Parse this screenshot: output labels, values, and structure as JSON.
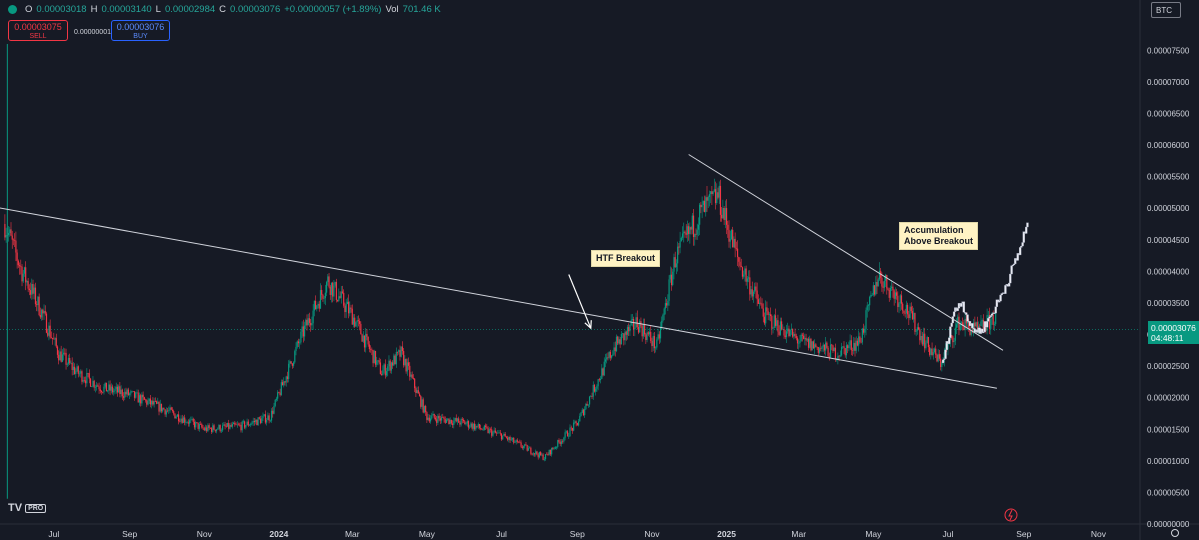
{
  "header": {
    "ohlc": {
      "o_label": "O",
      "o": "0.00003018",
      "h_label": "H",
      "h": "0.00003140",
      "l_label": "L",
      "l": "0.00002984",
      "c_label": "C",
      "c": "0.00003076",
      "change": "+0.00000057 (+1.89%)",
      "vol_label": "Vol",
      "vol": "701.46 K"
    },
    "sell": {
      "price": "0.00003075",
      "label": "SELL"
    },
    "spread": "0.00000001",
    "buy": {
      "price": "0.00003076",
      "label": "BUY"
    },
    "currency": "BTC"
  },
  "last_price": {
    "value": "0.00003076",
    "countdown": "04:48:11"
  },
  "annotations": {
    "htf": "HTF Breakout",
    "accum_line1": "Accumulation",
    "accum_line2": "Above Breakout"
  },
  "logo": {
    "name": "TV",
    "badge": "PRO"
  },
  "colors": {
    "up": "#089981",
    "down": "#f23645",
    "background": "#161a25",
    "text": "#d1d4dc"
  },
  "chart_data": {
    "type": "candlestick",
    "y_ticks": [
      "0.00007500",
      "0.00007000",
      "0.00006500",
      "0.00006000",
      "0.00005500",
      "0.00005000",
      "0.00004500",
      "0.00004000",
      "0.00003500",
      "0.00003000",
      "0.00002500",
      "0.00002000",
      "0.00001500",
      "0.00001000",
      "0.00000500",
      "0.00000000"
    ],
    "y_range": [
      0,
      7.9e-05
    ],
    "x_ticks": [
      "Jul",
      "Sep",
      "Nov",
      "2024",
      "Mar",
      "May",
      "Jul",
      "Sep",
      "Nov",
      "2025",
      "Mar",
      "May",
      "Jul",
      "Sep",
      "Nov"
    ],
    "x_range": [
      "2023-05-18",
      "2025-12-05"
    ],
    "current_price": 3.076e-05,
    "close_path": [
      [
        "2023-05-22",
        4.75e-05
      ],
      [
        "2023-06-05",
        4e-05
      ],
      [
        "2023-06-20",
        3.4e-05
      ],
      [
        "2023-07-05",
        2.7e-05
      ],
      [
        "2023-07-20",
        2.4e-05
      ],
      [
        "2023-08-10",
        2.15e-05
      ],
      [
        "2023-09-01",
        2.05e-05
      ],
      [
        "2023-10-01",
        1.8e-05
      ],
      [
        "2023-11-01",
        1.5e-05
      ],
      [
        "2023-12-01",
        1.55e-05
      ],
      [
        "2023-12-25",
        1.7e-05
      ],
      [
        "2024-01-20",
        3e-05
      ],
      [
        "2024-02-10",
        3.85e-05
      ],
      [
        "2024-03-01",
        3.3e-05
      ],
      [
        "2024-03-25",
        2.4e-05
      ],
      [
        "2024-04-10",
        2.7e-05
      ],
      [
        "2024-05-01",
        1.7e-05
      ],
      [
        "2024-06-01",
        1.6e-05
      ],
      [
        "2024-07-01",
        1.4e-05
      ],
      [
        "2024-08-05",
        1.05e-05
      ],
      [
        "2024-09-01",
        1.6e-05
      ],
      [
        "2024-10-01",
        2.8e-05
      ],
      [
        "2024-10-20",
        3.2e-05
      ],
      [
        "2024-11-05",
        2.8e-05
      ],
      [
        "2024-11-20",
        4.2e-05
      ],
      [
        "2024-12-10",
        4.9e-05
      ],
      [
        "2024-12-25",
        5.2e-05
      ],
      [
        "2025-01-10",
        4.2e-05
      ],
      [
        "2025-02-01",
        3.3e-05
      ],
      [
        "2025-03-01",
        2.9e-05
      ],
      [
        "2025-04-01",
        2.7e-05
      ],
      [
        "2025-04-20",
        2.9e-05
      ],
      [
        "2025-05-05",
        3.95e-05
      ],
      [
        "2025-05-25",
        3.5e-05
      ],
      [
        "2025-06-15",
        2.8e-05
      ],
      [
        "2025-06-25",
        2.55e-05
      ],
      [
        "2025-07-10",
        3.2e-05
      ],
      [
        "2025-07-25",
        3.05e-05
      ],
      [
        "2025-08-10",
        3.3e-05
      ]
    ],
    "projection": [
      [
        "2025-06-27",
        2.55e-05
      ],
      [
        "2025-07-05",
        3.3e-05
      ],
      [
        "2025-07-12",
        3.55e-05
      ],
      [
        "2025-07-20",
        3.1e-05
      ],
      [
        "2025-07-28",
        3.05e-05
      ],
      [
        "2025-08-05",
        3.3e-05
      ],
      [
        "2025-08-12",
        3.55e-05
      ],
      [
        "2025-08-20",
        3.9e-05
      ],
      [
        "2025-08-28",
        4.3e-05
      ],
      [
        "2025-09-05",
        4.8e-05
      ]
    ],
    "trendlines": [
      {
        "from": [
          "2023-04-20",
          5.1e-05
        ],
        "to": [
          "2025-08-10",
          2.15e-05
        ]
      },
      {
        "from": [
          "2024-12-01",
          5.85e-05
        ],
        "to": [
          "2025-08-15",
          2.75e-05
        ]
      }
    ],
    "arrow": {
      "from": [
        "2024-08-25",
        3.95e-05
      ],
      "to": [
        "2024-09-12",
        3.1e-05
      ]
    }
  }
}
